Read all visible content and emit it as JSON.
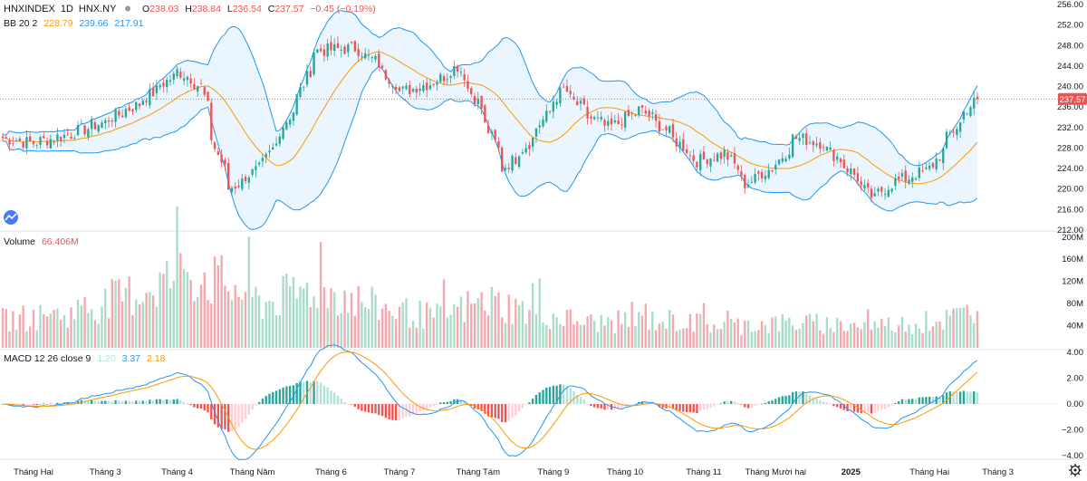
{
  "header": {
    "symbol": "HNXINDEX",
    "interval": "1D",
    "exchange": "HNX.NY",
    "ohlc": {
      "open_label": "O",
      "open": "238.03",
      "high_label": "H",
      "high": "238.84",
      "low_label": "L",
      "low": "236.54",
      "close_label": "C",
      "close": "237.57",
      "change": "−0.45 (−0.19%)"
    }
  },
  "bb_legend": {
    "label": "BB 20 2",
    "basis": "228.79",
    "upper": "239.66",
    "lower": "217.91"
  },
  "volume_legend": {
    "label": "Volume",
    "value": "66.406M"
  },
  "macd_legend": {
    "label": "MACD 12 26 close 9",
    "hist": "1.20",
    "macd": "3.37",
    "signal": "2.18"
  },
  "last_price_tag": "237.57",
  "price_axis": [
    "256.00",
    "252.00",
    "248.00",
    "244.00",
    "240.00",
    "236.00",
    "232.00",
    "228.00",
    "224.00",
    "220.00",
    "216.00",
    "212.00"
  ],
  "volume_axis": [
    "200M",
    "160M",
    "120M",
    "80M",
    "40M"
  ],
  "macd_axis": [
    "4.00",
    "2.00",
    "0.00",
    "−2.00",
    "−4.00"
  ],
  "time_axis": [
    "Tháng Hai",
    "Tháng 3",
    "Tháng 4",
    "Tháng Năm",
    "Tháng 6",
    "Tháng 7",
    "Tháng Tám",
    "Tháng 9",
    "Tháng 10",
    "Tháng 11",
    "Tháng Mười hai",
    "2025",
    "Tháng Hai",
    "Tháng 3"
  ],
  "colors": {
    "up": "#26a69a",
    "down": "#ef5350",
    "vol_up": "#a9dcc8",
    "vol_down": "#f4a7ad",
    "bb_band": "#2196f3",
    "bb_basis": "#ff9800",
    "bb_fill": "#e3f2fd",
    "macd_line": "#2196f3",
    "signal_line": "#ff9800",
    "hist_up_strong": "#26a69a",
    "hist_up_weak": "#b2dfdb",
    "hist_down_strong": "#ef5350",
    "hist_down_weak": "#ffcdd2"
  },
  "chart_data": [
    {
      "type": "candlestick",
      "title": "HNXINDEX 1D",
      "ylim": [
        212,
        256
      ],
      "anchors_close": [
        [
          "2024-01-19",
          230.0
        ],
        [
          "2024-02-01",
          229.0
        ],
        [
          "2024-02-15",
          230.5
        ],
        [
          "2024-03-01",
          233.0
        ],
        [
          "2024-03-15",
          236.5
        ],
        [
          "2024-04-01",
          243.0
        ],
        [
          "2024-04-10",
          240.0
        ],
        [
          "2024-04-16",
          228.0
        ],
        [
          "2024-04-22",
          220.0
        ],
        [
          "2024-05-06",
          225.0
        ],
        [
          "2024-05-20",
          238.0
        ],
        [
          "2024-05-27",
          247.0
        ],
        [
          "2024-06-12",
          247.5
        ],
        [
          "2024-06-20",
          245.0
        ],
        [
          "2024-07-01",
          239.0
        ],
        [
          "2024-07-15",
          241.0
        ],
        [
          "2024-07-24",
          244.0
        ],
        [
          "2024-08-01",
          237.0
        ],
        [
          "2024-08-08",
          229.0
        ],
        [
          "2024-08-12",
          224.0
        ],
        [
          "2024-08-22",
          229.0
        ],
        [
          "2024-09-05",
          239.5
        ],
        [
          "2024-09-16",
          234.0
        ],
        [
          "2024-09-24",
          232.0
        ],
        [
          "2024-10-07",
          235.5
        ],
        [
          "2024-10-16",
          232.0
        ],
        [
          "2024-10-30",
          225.5
        ],
        [
          "2024-11-11",
          227.0
        ],
        [
          "2024-11-19",
          221.0
        ],
        [
          "2024-12-02",
          225.0
        ],
        [
          "2024-12-09",
          230.0
        ],
        [
          "2024-12-20",
          229.0
        ],
        [
          "2024-12-31",
          224.0
        ],
        [
          "2025-01-10",
          218.0
        ],
        [
          "2025-01-17",
          221.0
        ],
        [
          "2025-02-03",
          224.0
        ],
        [
          "2025-02-10",
          230.0
        ],
        [
          "2025-02-17",
          235.0
        ],
        [
          "2025-02-21",
          237.57
        ]
      ],
      "last": {
        "open": 238.03,
        "high": 238.84,
        "low": 236.54,
        "close": 237.57
      }
    },
    {
      "type": "line",
      "title": "BB 20 2",
      "series": [
        {
          "name": "basis",
          "last": 228.79
        },
        {
          "name": "upper",
          "last": 239.66
        },
        {
          "name": "lower",
          "last": 217.91
        }
      ]
    },
    {
      "type": "bar",
      "title": "Volume",
      "ylim": [
        0,
        200
      ],
      "unit": "M",
      "anchors": [
        [
          "2024-01-19",
          50
        ],
        [
          "2024-02-15",
          60
        ],
        [
          "2024-03-15",
          100
        ],
        [
          "2024-04-05",
          140
        ],
        [
          "2024-04-22",
          110
        ],
        [
          "2024-05-06",
          80
        ],
        [
          "2024-05-27",
          110
        ],
        [
          "2024-06-20",
          75
        ],
        [
          "2024-07-15",
          55
        ],
        [
          "2024-08-05",
          85
        ],
        [
          "2024-08-22",
          65
        ],
        [
          "2024-09-16",
          45
        ],
        [
          "2024-10-16",
          50
        ],
        [
          "2024-11-11",
          40
        ],
        [
          "2024-12-09",
          45
        ],
        [
          "2025-01-10",
          40
        ],
        [
          "2025-02-03",
          45
        ],
        [
          "2025-02-21",
          66.406
        ]
      ],
      "last": 66.406
    },
    {
      "type": "line",
      "title": "MACD 12 26 close 9",
      "ylim": [
        -5,
        4
      ],
      "series": [
        {
          "name": "histogram",
          "last": 1.2
        },
        {
          "name": "MACD",
          "last": 3.37
        },
        {
          "name": "signal",
          "last": 2.18
        }
      ]
    }
  ]
}
